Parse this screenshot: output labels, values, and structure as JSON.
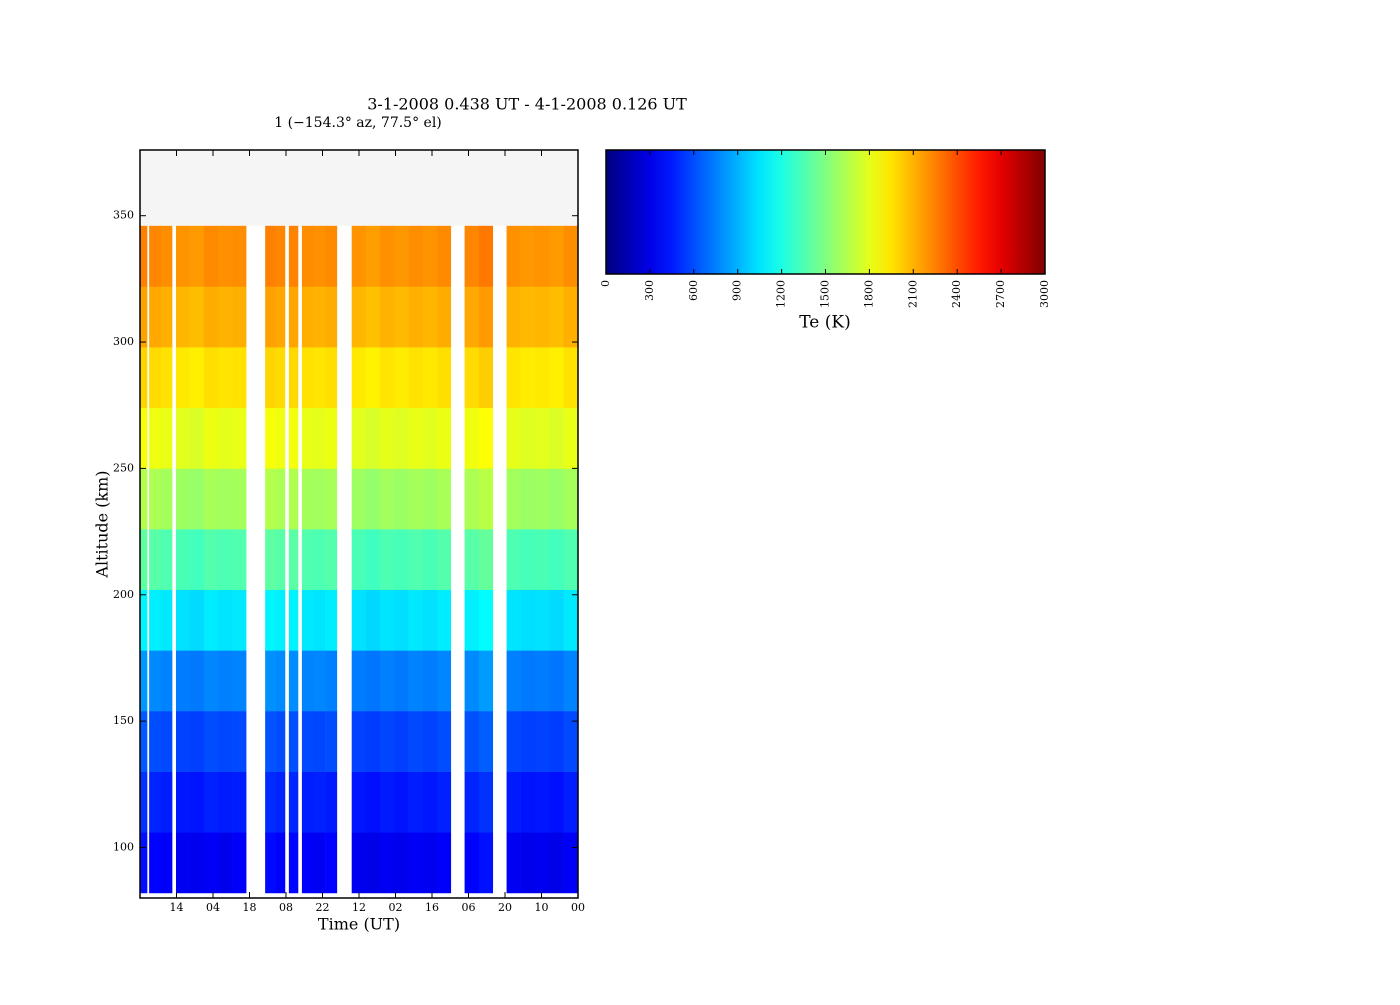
{
  "chart_data": {
    "type": "heatmap",
    "title": "3-1-2008 0.438 UT - 4-1-2008 0.126 UT",
    "subtitle": "1 (−154.3° az, 77.5° el)",
    "x_label": "Time (UT)",
    "y_label": "Altitude (km)",
    "colorbar_label": "Te (K)",
    "colormap": "jet",
    "x": [
      0,
      2.7,
      3.5,
      8,
      12.3,
      13.8,
      19,
      24.5,
      30,
      35.5,
      40.7,
      48,
      52,
      55.6,
      57.1,
      60.6,
      62.1,
      66.5,
      71,
      75.5,
      81.2,
      86.6,
      92,
      97.5,
      103,
      108.5,
      114,
      119.2,
      124.5,
      130,
      135.3,
      140.6,
      146,
      151.5,
      157,
      162.5,
      167.8
    ],
    "y": [
      82,
      106,
      130,
      154,
      178,
      202,
      226,
      250,
      274,
      298,
      322,
      346
    ],
    "values": [
      [
        420,
        null,
        380,
        360,
        null,
        340,
        330,
        350,
        320,
        360,
        null,
        400,
        370,
        null,
        390,
        null,
        360,
        340,
        380,
        null,
        330,
        310,
        340,
        320,
        350,
        330,
        360,
        null,
        380,
        420,
        null,
        340,
        320,
        330,
        310,
        350
      ],
      [
        520,
        null,
        480,
        460,
        null,
        440,
        430,
        470,
        450,
        460,
        null,
        500,
        480,
        null,
        490,
        null,
        460,
        470,
        450,
        null,
        440,
        420,
        450,
        430,
        460,
        440,
        470,
        null,
        480,
        520,
        null,
        450,
        430,
        440,
        420,
        460
      ],
      [
        640,
        null,
        600,
        590,
        null,
        570,
        560,
        600,
        580,
        590,
        null,
        620,
        600,
        null,
        610,
        null,
        590,
        580,
        600,
        null,
        570,
        550,
        580,
        560,
        590,
        570,
        600,
        null,
        610,
        650,
        null,
        580,
        560,
        570,
        550,
        590
      ],
      [
        820,
        null,
        780,
        760,
        null,
        740,
        730,
        770,
        750,
        760,
        null,
        800,
        780,
        null,
        790,
        null,
        760,
        770,
        750,
        null,
        740,
        720,
        750,
        730,
        760,
        740,
        770,
        null,
        780,
        830,
        null,
        750,
        730,
        740,
        720,
        760
      ],
      [
        1100,
        null,
        1080,
        1060,
        null,
        1040,
        1020,
        1070,
        1050,
        1060,
        null,
        1100,
        1080,
        null,
        1090,
        null,
        1060,
        1050,
        1070,
        null,
        1040,
        1010,
        1050,
        1030,
        1060,
        1040,
        1070,
        null,
        1080,
        1120,
        null,
        1050,
        1030,
        1040,
        1020,
        1060
      ],
      [
        1400,
        null,
        1380,
        1360,
        null,
        1340,
        1320,
        1370,
        1350,
        1360,
        null,
        1400,
        1380,
        null,
        1390,
        null,
        1360,
        1350,
        1370,
        null,
        1340,
        1310,
        1350,
        1330,
        1360,
        1340,
        1370,
        null,
        1380,
        1420,
        null,
        1350,
        1330,
        1340,
        1320,
        1360
      ],
      [
        1650,
        null,
        1630,
        1610,
        null,
        1590,
        1570,
        1620,
        1600,
        1610,
        null,
        1650,
        1630,
        null,
        1640,
        null,
        1610,
        1600,
        1620,
        null,
        1590,
        1560,
        1600,
        1580,
        1610,
        1590,
        1620,
        null,
        1630,
        1670,
        null,
        1600,
        1580,
        1590,
        1570,
        1610
      ],
      [
        1850,
        null,
        1830,
        1810,
        null,
        1790,
        1770,
        1820,
        1800,
        1810,
        null,
        1850,
        1830,
        null,
        1840,
        null,
        1810,
        1800,
        1820,
        null,
        1790,
        1760,
        1800,
        1780,
        1810,
        1790,
        1820,
        null,
        1830,
        1870,
        null,
        1800,
        1780,
        1790,
        1770,
        1810
      ],
      [
        2000,
        null,
        1980,
        1960,
        null,
        1940,
        1920,
        1970,
        1950,
        1960,
        null,
        2000,
        1980,
        null,
        1990,
        null,
        1960,
        1950,
        1970,
        null,
        1940,
        1910,
        1950,
        1930,
        1960,
        1940,
        1970,
        null,
        1980,
        2020,
        null,
        1950,
        1930,
        1940,
        1920,
        1960
      ],
      [
        2150,
        null,
        2130,
        2110,
        null,
        2090,
        2070,
        2120,
        2100,
        2110,
        null,
        2150,
        2130,
        null,
        2140,
        null,
        2110,
        2100,
        2120,
        null,
        2090,
        2060,
        2100,
        2080,
        2110,
        2090,
        2120,
        null,
        2130,
        2170,
        null,
        2100,
        2080,
        2090,
        2070,
        2110
      ],
      [
        2250,
        null,
        2230,
        2210,
        null,
        2190,
        2170,
        2220,
        2200,
        2210,
        null,
        2250,
        2230,
        null,
        2240,
        null,
        2210,
        2200,
        2220,
        null,
        2190,
        2160,
        2200,
        2180,
        2210,
        2190,
        2220,
        null,
        2230,
        2270,
        null,
        2200,
        2180,
        2190,
        2170,
        2210
      ]
    ],
    "xlim": [
      0,
      168
    ],
    "xticks": [
      {
        "value": 14,
        "label": "14"
      },
      {
        "value": 28,
        "label": "04"
      },
      {
        "value": 42,
        "label": "18"
      },
      {
        "value": 56,
        "label": "08"
      },
      {
        "value": 70,
        "label": "22"
      },
      {
        "value": 84,
        "label": "12"
      },
      {
        "value": 98,
        "label": "02"
      },
      {
        "value": 112,
        "label": "16"
      },
      {
        "value": 126,
        "label": "06"
      },
      {
        "value": 140,
        "label": "20"
      },
      {
        "value": 154,
        "label": "10"
      },
      {
        "value": 168,
        "label": "00"
      }
    ],
    "ylim": [
      80,
      376
    ],
    "yticks": [
      100,
      150,
      200,
      250,
      300,
      350
    ],
    "clim": [
      0,
      3000
    ],
    "cticks": [
      0,
      300,
      600,
      900,
      1200,
      1500,
      1800,
      2100,
      2400,
      2700,
      3000
    ]
  }
}
